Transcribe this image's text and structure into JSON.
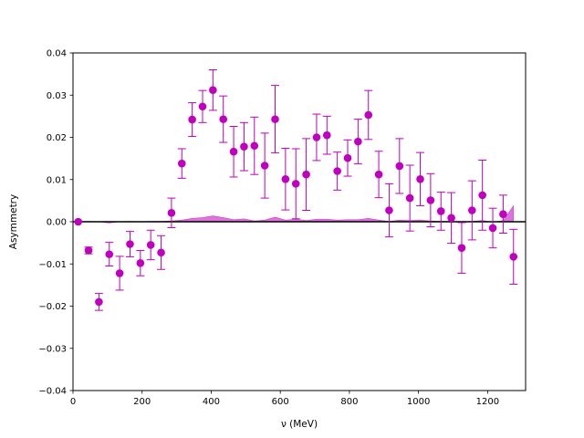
{
  "chart_data": {
    "type": "scatter",
    "title": "",
    "xlabel": "ν (MeV)",
    "ylabel": "Asymmetry",
    "xlim": [
      0,
      1310
    ],
    "ylim": [
      -0.04,
      0.04
    ],
    "xticks": [
      0,
      200,
      400,
      600,
      800,
      1000,
      1200
    ],
    "xtick_labels": [
      "0",
      "200",
      "400",
      "600",
      "800",
      "1000",
      "1200"
    ],
    "yticks": [
      -0.04,
      -0.03,
      -0.02,
      -0.01,
      0.0,
      0.01,
      0.02,
      0.03,
      0.04
    ],
    "ytick_labels": [
      "−0.04",
      "−0.03",
      "−0.02",
      "−0.01",
      "0.00",
      "0.01",
      "0.02",
      "0.03",
      "0.04"
    ],
    "grid": false,
    "legend": "none",
    "reference_line_y": 0,
    "marker_color": "#bf00bf",
    "band_color": "#bf00bf",
    "points": [
      {
        "x": 15,
        "y": 0.0,
        "err": 0.0
      },
      {
        "x": 45,
        "y": -0.0068,
        "err": 0.0008
      },
      {
        "x": 75,
        "y": -0.019,
        "err": 0.002
      },
      {
        "x": 105,
        "y": -0.0077,
        "err": 0.0028
      },
      {
        "x": 135,
        "y": -0.0122,
        "err": 0.004
      },
      {
        "x": 165,
        "y": -0.0053,
        "err": 0.003
      },
      {
        "x": 195,
        "y": -0.0098,
        "err": 0.003
      },
      {
        "x": 225,
        "y": -0.0055,
        "err": 0.0035
      },
      {
        "x": 255,
        "y": -0.0073,
        "err": 0.004
      },
      {
        "x": 285,
        "y": 0.0021,
        "err": 0.0035
      },
      {
        "x": 315,
        "y": 0.0138,
        "err": 0.0035
      },
      {
        "x": 345,
        "y": 0.0242,
        "err": 0.004
      },
      {
        "x": 375,
        "y": 0.0273,
        "err": 0.0038
      },
      {
        "x": 405,
        "y": 0.0312,
        "err": 0.0048
      },
      {
        "x": 435,
        "y": 0.0243,
        "err": 0.0055
      },
      {
        "x": 465,
        "y": 0.0166,
        "err": 0.006
      },
      {
        "x": 495,
        "y": 0.0178,
        "err": 0.0057
      },
      {
        "x": 525,
        "y": 0.018,
        "err": 0.0068
      },
      {
        "x": 555,
        "y": 0.0133,
        "err": 0.0077
      },
      {
        "x": 585,
        "y": 0.0243,
        "err": 0.008
      },
      {
        "x": 615,
        "y": 0.0101,
        "err": 0.0073
      },
      {
        "x": 645,
        "y": 0.009,
        "err": 0.0083
      },
      {
        "x": 675,
        "y": 0.0112,
        "err": 0.0085
      },
      {
        "x": 705,
        "y": 0.02,
        "err": 0.0055
      },
      {
        "x": 735,
        "y": 0.0205,
        "err": 0.0045
      },
      {
        "x": 765,
        "y": 0.012,
        "err": 0.0045
      },
      {
        "x": 795,
        "y": 0.0151,
        "err": 0.0043
      },
      {
        "x": 825,
        "y": 0.019,
        "err": 0.0053
      },
      {
        "x": 855,
        "y": 0.0253,
        "err": 0.0058
      },
      {
        "x": 885,
        "y": 0.0112,
        "err": 0.0055
      },
      {
        "x": 915,
        "y": 0.0027,
        "err": 0.0063
      },
      {
        "x": 945,
        "y": 0.0132,
        "err": 0.0065
      },
      {
        "x": 975,
        "y": 0.0056,
        "err": 0.0078
      },
      {
        "x": 1005,
        "y": 0.0101,
        "err": 0.0063
      },
      {
        "x": 1035,
        "y": 0.0051,
        "err": 0.0063
      },
      {
        "x": 1065,
        "y": 0.0025,
        "err": 0.0045
      },
      {
        "x": 1095,
        "y": 0.0009,
        "err": 0.006
      },
      {
        "x": 1125,
        "y": -0.0062,
        "err": 0.006
      },
      {
        "x": 1155,
        "y": 0.0027,
        "err": 0.007
      },
      {
        "x": 1185,
        "y": 0.0063,
        "err": 0.0083
      },
      {
        "x": 1215,
        "y": -0.0015,
        "err": 0.0047
      },
      {
        "x": 1245,
        "y": 0.0018,
        "err": 0.0045
      },
      {
        "x": 1275,
        "y": -0.0083,
        "err": 0.0065
      }
    ],
    "band": [
      {
        "x": 15,
        "y": 0.0
      },
      {
        "x": 45,
        "y": 0.0001
      },
      {
        "x": 75,
        "y": 0.0
      },
      {
        "x": 105,
        "y": -0.0003
      },
      {
        "x": 135,
        "y": 0.0
      },
      {
        "x": 165,
        "y": 0.0001
      },
      {
        "x": 195,
        "y": 0.0
      },
      {
        "x": 225,
        "y": 0.0001
      },
      {
        "x": 255,
        "y": 0.0001
      },
      {
        "x": 285,
        "y": 0.0002
      },
      {
        "x": 315,
        "y": 0.0004
      },
      {
        "x": 345,
        "y": 0.0008
      },
      {
        "x": 375,
        "y": 0.001
      },
      {
        "x": 405,
        "y": 0.0014
      },
      {
        "x": 435,
        "y": 0.001
      },
      {
        "x": 465,
        "y": 0.0005
      },
      {
        "x": 495,
        "y": 0.0007
      },
      {
        "x": 525,
        "y": 0.0002
      },
      {
        "x": 555,
        "y": 0.0004
      },
      {
        "x": 585,
        "y": 0.0011
      },
      {
        "x": 615,
        "y": 0.0004
      },
      {
        "x": 645,
        "y": 0.0006
      },
      {
        "x": 675,
        "y": 0.0003
      },
      {
        "x": 705,
        "y": 0.0006
      },
      {
        "x": 735,
        "y": 0.0006
      },
      {
        "x": 765,
        "y": 0.0004
      },
      {
        "x": 795,
        "y": 0.0005
      },
      {
        "x": 825,
        "y": 0.0005
      },
      {
        "x": 855,
        "y": 0.0008
      },
      {
        "x": 885,
        "y": 0.0004
      },
      {
        "x": 915,
        "y": 0.0001
      },
      {
        "x": 945,
        "y": 0.0004
      },
      {
        "x": 975,
        "y": 0.0003
      },
      {
        "x": 1005,
        "y": 0.0004
      },
      {
        "x": 1035,
        "y": 0.0002
      },
      {
        "x": 1065,
        "y": 0.0001
      },
      {
        "x": 1095,
        "y": 0.0001
      },
      {
        "x": 1125,
        "y": -0.0002
      },
      {
        "x": 1155,
        "y": 0.0001
      },
      {
        "x": 1185,
        "y": 0.0003
      },
      {
        "x": 1215,
        "y": -0.0001
      },
      {
        "x": 1245,
        "y": 0.0003
      },
      {
        "x": 1275,
        "y": 0.0038
      }
    ]
  }
}
